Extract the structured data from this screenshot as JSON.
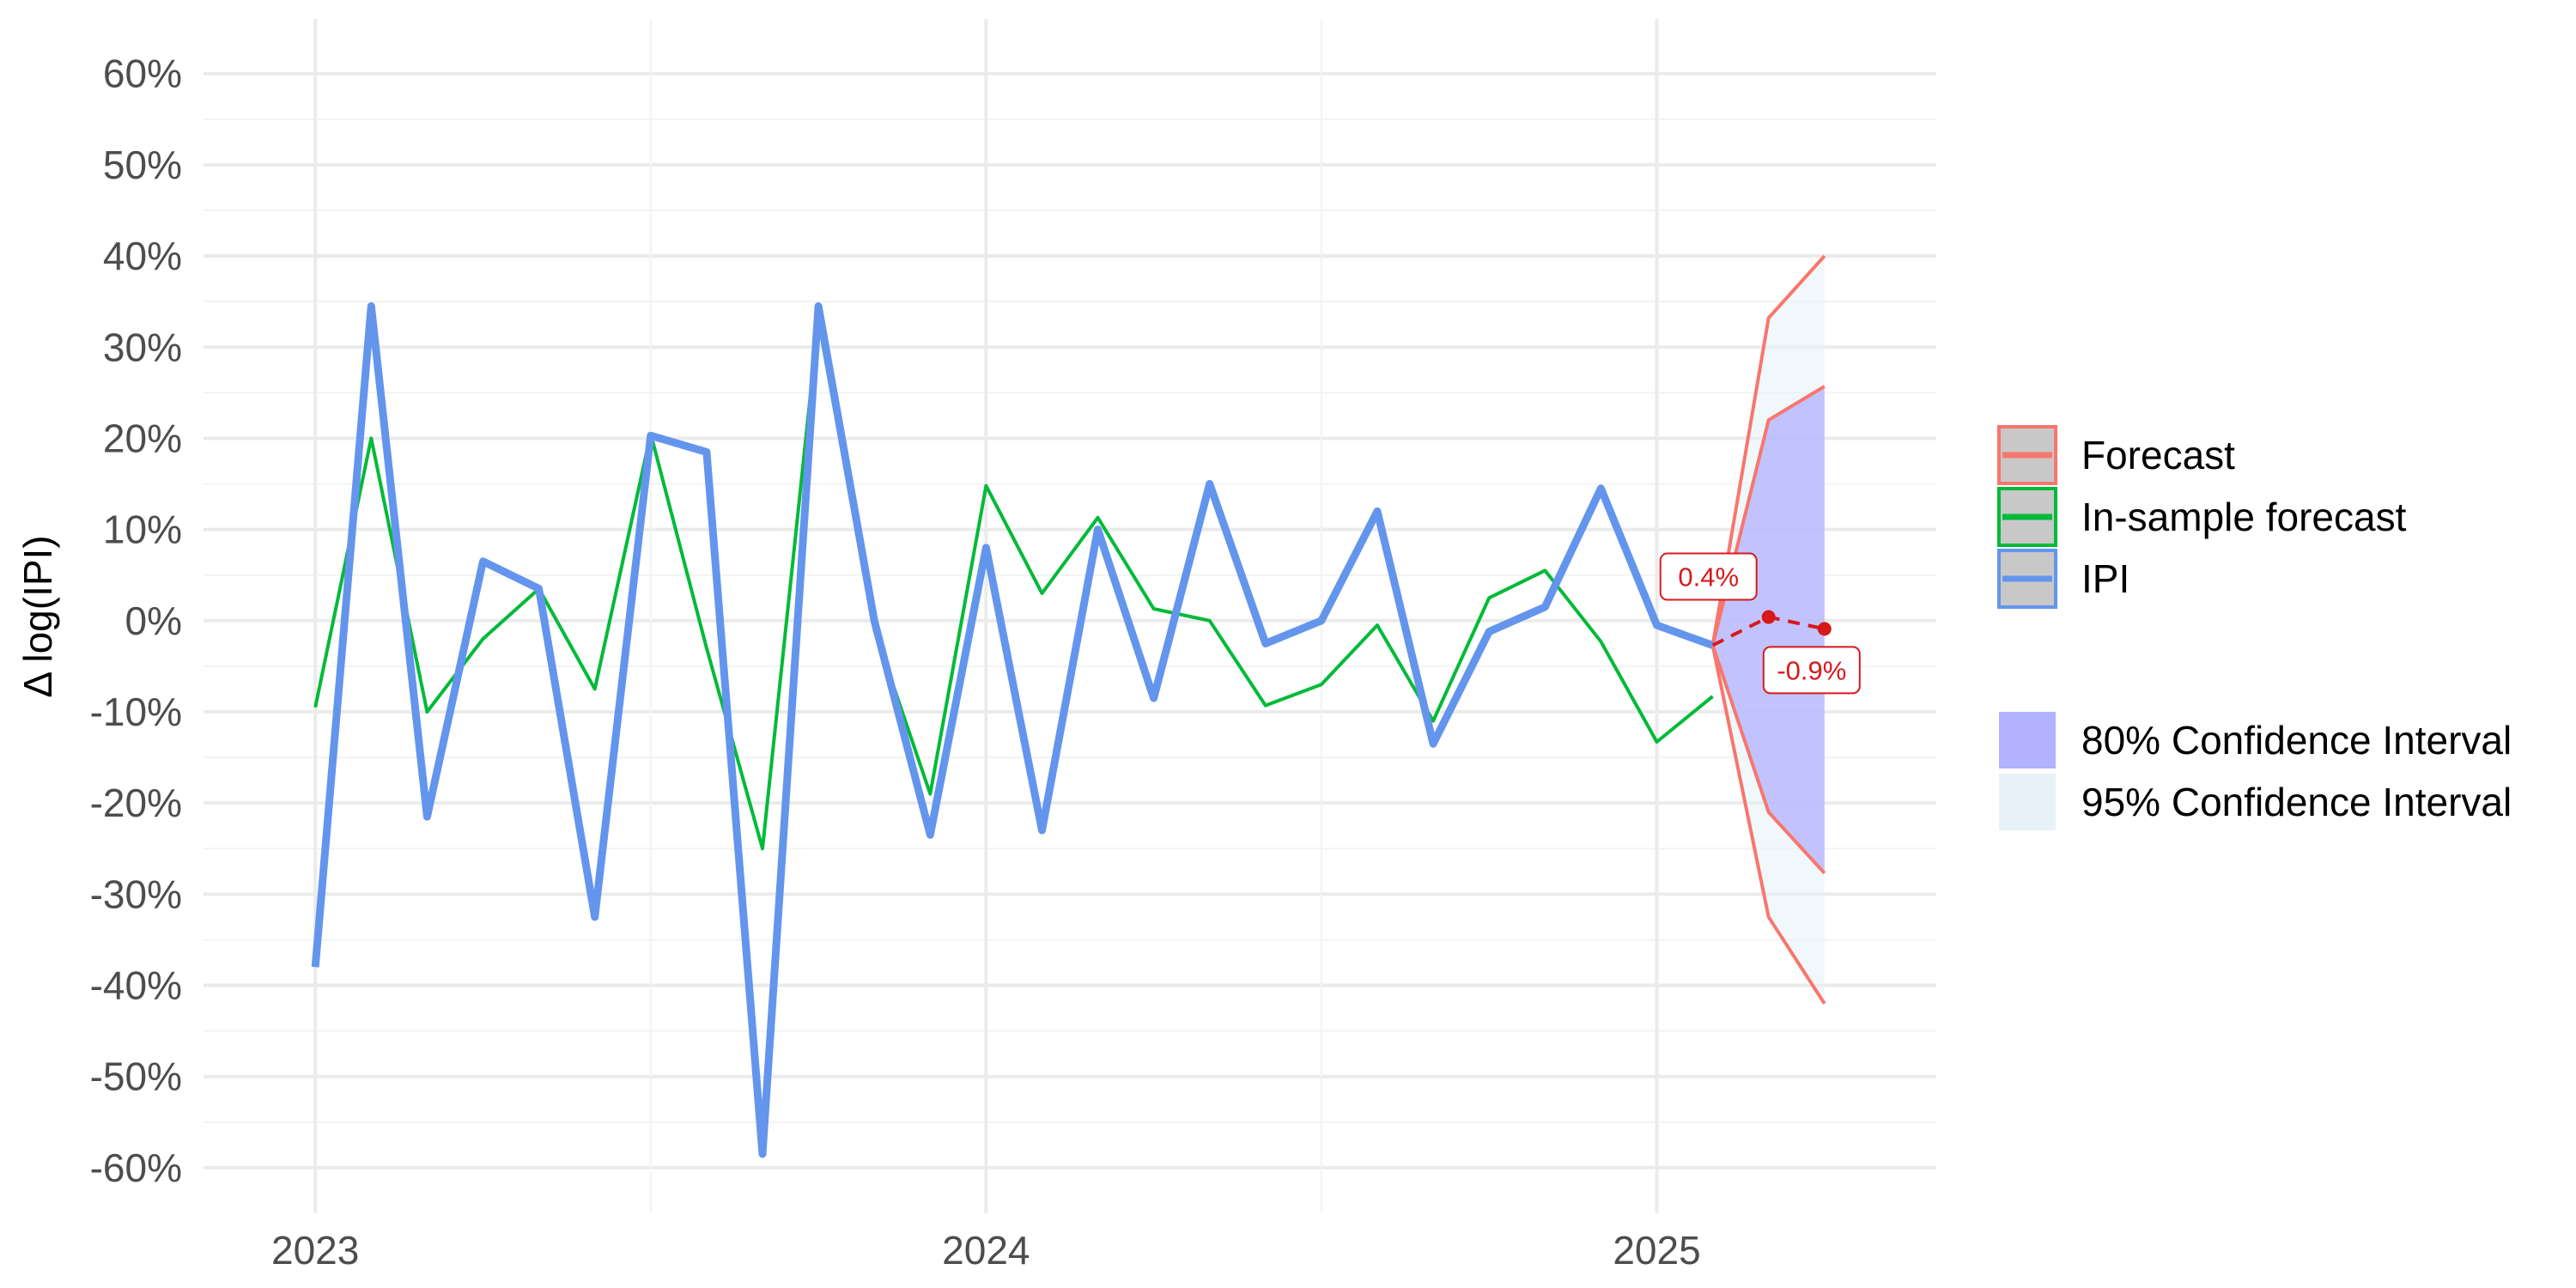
{
  "chart_data": {
    "type": "line",
    "ylabel": "Δ log(IPI)",
    "xlabel": "",
    "title": "",
    "y_tick_labels": [
      "-60%",
      "-50%",
      "-40%",
      "-30%",
      "-20%",
      "-10%",
      "0%",
      "10%",
      "20%",
      "30%",
      "40%",
      "50%",
      "60%"
    ],
    "y_tick_values": [
      -60,
      -50,
      -40,
      -30,
      -20,
      -10,
      0,
      10,
      20,
      30,
      40,
      50,
      60
    ],
    "ylim": [
      -65,
      66
    ],
    "x_tick_labels": [
      "2023",
      "2024",
      "2025"
    ],
    "x_tick_values": [
      "2023-01",
      "2024-01",
      "2025-01"
    ],
    "xlim": [
      "2022-11",
      "2025-06"
    ],
    "grid": true,
    "legend_position": "right",
    "series": [
      {
        "name": "IPI",
        "color": "#6495ED",
        "x": [
          "2023-01",
          "2023-02",
          "2023-03",
          "2023-04",
          "2023-05",
          "2023-06",
          "2023-07",
          "2023-08",
          "2023-09",
          "2023-10",
          "2023-11",
          "2023-12",
          "2024-01",
          "2024-02",
          "2024-03",
          "2024-04",
          "2024-05",
          "2024-06",
          "2024-07",
          "2024-08",
          "2024-09",
          "2024-10",
          "2024-11",
          "2024-12",
          "2025-01",
          "2025-02"
        ],
        "values": [
          -38.0,
          34.5,
          -21.5,
          6.5,
          3.5,
          -32.5,
          20.3,
          18.5,
          -58.5,
          34.5,
          0.0,
          -23.5,
          8.0,
          -23.0,
          10.0,
          -8.5,
          15.0,
          -2.5,
          0.0,
          12.0,
          -13.5,
          -1.2,
          1.5,
          14.5,
          -0.5,
          -2.7
        ]
      },
      {
        "name": "In-sample forecast",
        "color": "#00BA38",
        "x": [
          "2023-01",
          "2023-02",
          "2023-03",
          "2023-04",
          "2023-05",
          "2023-06",
          "2023-07",
          "2023-08",
          "2023-09",
          "2023-10",
          "2023-11",
          "2023-12",
          "2024-01",
          "2024-02",
          "2024-03",
          "2024-04",
          "2024-05",
          "2024-06",
          "2024-07",
          "2024-08",
          "2024-09",
          "2024-10",
          "2024-11",
          "2024-12",
          "2025-01",
          "2025-02"
        ],
        "values": [
          -9.5,
          20.0,
          -10.0,
          -2.0,
          3.5,
          -7.5,
          20.5,
          -3.0,
          -25.0,
          33.0,
          -1.0,
          -19.0,
          14.8,
          3.0,
          11.3,
          1.3,
          0.0,
          -9.3,
          -7.0,
          -0.5,
          -11.0,
          2.5,
          5.5,
          -2.3,
          -13.3,
          -8.3
        ]
      },
      {
        "name": "Forecast",
        "color": "#F8766D",
        "point_color": "#D7191C",
        "x": [
          "2025-02",
          "2025-03",
          "2025-04"
        ],
        "values": [
          -2.7,
          0.4,
          -0.9
        ],
        "lower80": [
          -2.7,
          -21.0,
          -27.7
        ],
        "upper80": [
          -2.7,
          22.0,
          25.7
        ],
        "lower95": [
          -2.7,
          -32.5,
          -42.0
        ],
        "upper95": [
          -2.7,
          33.2,
          40.0
        ]
      }
    ],
    "annotations": [
      {
        "x": "2025-03",
        "y": 0.4,
        "label": "0.4%"
      },
      {
        "x": "2025-04",
        "y": -0.9,
        "label": "-0.9%"
      }
    ],
    "legend": {
      "lines": [
        {
          "name": "Forecast",
          "color": "#F8766D"
        },
        {
          "name": "In-sample forecast",
          "color": "#00BA38"
        },
        {
          "name": "IPI",
          "color": "#6495ED"
        }
      ],
      "bands": [
        {
          "name": "80% Confidence Interval",
          "color": "#B2B2FF"
        },
        {
          "name": "95% Confidence Interval",
          "color": "#E6F2F8"
        }
      ]
    }
  }
}
